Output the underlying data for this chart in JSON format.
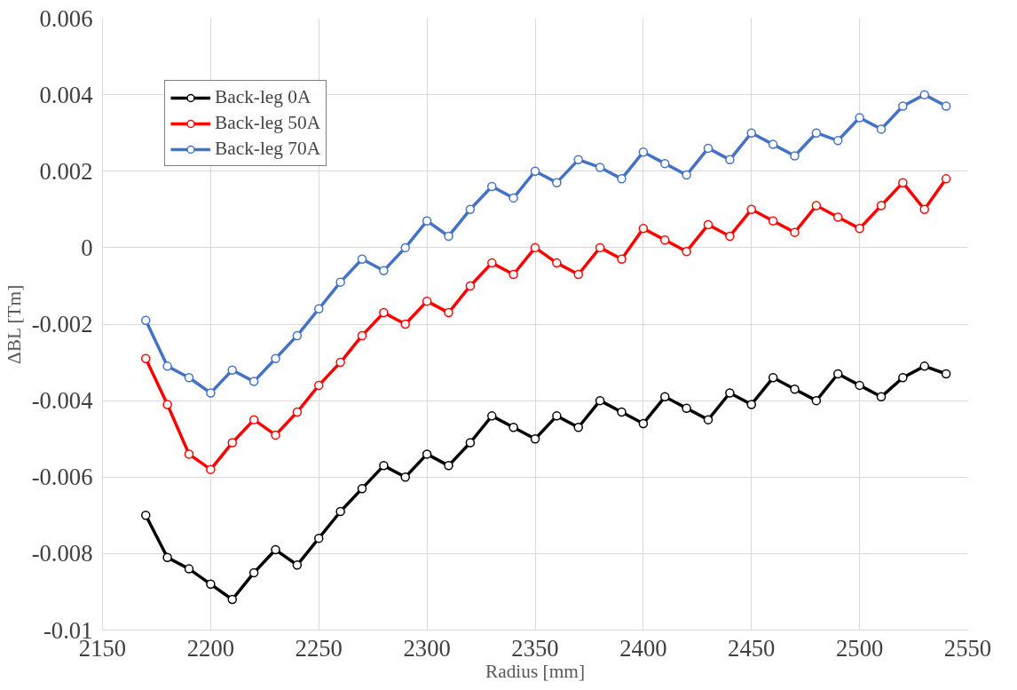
{
  "chart_data": {
    "type": "line",
    "xlabel": "Radius [mm]",
    "ylabel": "ΔBL [Tm]",
    "x": [
      2170,
      2180,
      2190,
      2200,
      2210,
      2220,
      2230,
      2240,
      2250,
      2260,
      2270,
      2280,
      2290,
      2300,
      2310,
      2320,
      2330,
      2340,
      2350,
      2360,
      2370,
      2380,
      2390,
      2400,
      2410,
      2420,
      2430,
      2440,
      2450,
      2460,
      2470,
      2480,
      2490,
      2500,
      2510,
      2520,
      2530,
      2540
    ],
    "series": [
      {
        "name": "Back-leg 0A",
        "color": "#000000",
        "values": [
          -0.007,
          -0.0081,
          -0.0084,
          -0.0088,
          -0.0092,
          -0.0085,
          -0.0079,
          -0.0083,
          -0.0076,
          -0.0069,
          -0.0063,
          -0.0057,
          -0.006,
          -0.0054,
          -0.0057,
          -0.0051,
          -0.0044,
          -0.0047,
          -0.005,
          -0.0044,
          -0.0047,
          -0.004,
          -0.0043,
          -0.0046,
          -0.0039,
          -0.0042,
          -0.0045,
          -0.0038,
          -0.0041,
          -0.0034,
          -0.0037,
          -0.004,
          -0.0033,
          -0.0036,
          -0.0039,
          -0.0034,
          -0.0031,
          -0.0033
        ]
      },
      {
        "name": "Back-leg 50A",
        "color": "#ff0000",
        "values": [
          -0.0029,
          -0.0041,
          -0.0054,
          -0.0058,
          -0.0051,
          -0.0045,
          -0.0049,
          -0.0043,
          -0.0036,
          -0.003,
          -0.0023,
          -0.0017,
          -0.002,
          -0.0014,
          -0.0017,
          -0.001,
          -0.0004,
          -0.0007,
          0.0,
          -0.0004,
          -0.0007,
          0.0,
          -0.0003,
          0.0005,
          0.0002,
          -0.0001,
          0.0006,
          0.0003,
          0.001,
          0.0007,
          0.0004,
          0.0011,
          0.0008,
          0.0005,
          0.0011,
          0.0017,
          0.001,
          0.0018
        ]
      },
      {
        "name": "Back-leg 70A",
        "color": "#4472c4",
        "values": [
          -0.0019,
          -0.0031,
          -0.0034,
          -0.0038,
          -0.0032,
          -0.0035,
          -0.0029,
          -0.0023,
          -0.0016,
          -0.0009,
          -0.0003,
          -0.0006,
          0.0,
          0.0007,
          0.0003,
          0.001,
          0.0016,
          0.0013,
          0.002,
          0.0017,
          0.0023,
          0.0021,
          0.0018,
          0.0025,
          0.0022,
          0.0019,
          0.0026,
          0.0023,
          0.003,
          0.0027,
          0.0024,
          0.003,
          0.0028,
          0.0034,
          0.0031,
          0.0037,
          0.004,
          0.0037
        ]
      }
    ],
    "xlim": [
      2150,
      2550
    ],
    "xticks": [
      2150,
      2200,
      2250,
      2300,
      2350,
      2400,
      2450,
      2500,
      2550
    ],
    "ylim": [
      -0.01,
      0.006
    ],
    "yticks": [
      {
        "value": -0.01,
        "label": "-0.01"
      },
      -0.008,
      -0.006,
      -0.004,
      -0.002,
      0,
      0.002,
      0.004,
      0.006
    ],
    "grid": true,
    "legend": "top left",
    "marker": "circle",
    "line_style": "solid"
  }
}
